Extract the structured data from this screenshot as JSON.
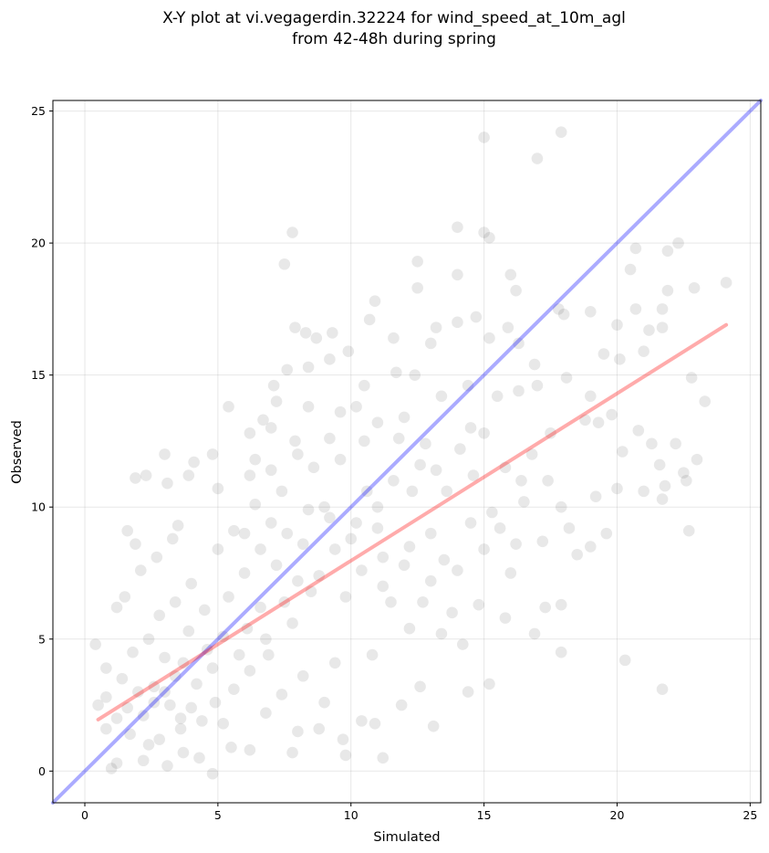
{
  "chart_data": {
    "type": "scatter",
    "title_lines": [
      "X-Y plot at vi.vegagerdin.32224 for wind_speed_at_10m_agl",
      "from 42-48h during spring"
    ],
    "xlabel": "Simulated",
    "ylabel": "Observed",
    "xlim": [
      -1.2,
      25.4
    ],
    "ylim": [
      -1.2,
      25.4
    ],
    "xticks": [
      0,
      5,
      10,
      15,
      20,
      25
    ],
    "yticks": [
      0,
      5,
      10,
      15,
      20,
      25
    ],
    "grid": true,
    "point_color": "#000000",
    "point_alpha": 0.09,
    "identity_line": {
      "from": [
        -1.2,
        -1.2
      ],
      "to": [
        25.4,
        25.4
      ],
      "color": "#0000ff"
    },
    "fit_line": {
      "from": [
        0.5,
        1.95
      ],
      "to": [
        24.1,
        16.9
      ],
      "color": "#ff0000"
    },
    "series": [
      {
        "values": [
          [
            17.9,
            24.2
          ],
          [
            15.0,
            24.0
          ],
          [
            17.0,
            23.2
          ],
          [
            12.5,
            19.3
          ],
          [
            7.5,
            19.2
          ],
          [
            7.8,
            20.4
          ],
          [
            14.0,
            20.6
          ],
          [
            15.0,
            20.4
          ],
          [
            15.2,
            20.2
          ],
          [
            20.7,
            19.8
          ],
          [
            22.3,
            20.0
          ],
          [
            20.5,
            19.0
          ],
          [
            21.9,
            19.7
          ],
          [
            14.0,
            18.8
          ],
          [
            12.5,
            18.3
          ],
          [
            10.9,
            17.8
          ],
          [
            16.0,
            18.8
          ],
          [
            16.2,
            18.2
          ],
          [
            17.8,
            17.5
          ],
          [
            19.0,
            17.4
          ],
          [
            20.7,
            17.5
          ],
          [
            21.7,
            17.5
          ],
          [
            22.9,
            18.3
          ],
          [
            24.1,
            18.5
          ],
          [
            21.9,
            18.2
          ],
          [
            18.0,
            17.3
          ],
          [
            21.2,
            16.7
          ],
          [
            21.7,
            16.8
          ],
          [
            20.0,
            16.9
          ],
          [
            15.9,
            16.8
          ],
          [
            16.3,
            16.2
          ],
          [
            14.7,
            17.2
          ],
          [
            15.2,
            16.4
          ],
          [
            11.6,
            16.4
          ],
          [
            10.7,
            17.1
          ],
          [
            8.3,
            16.6
          ],
          [
            8.7,
            16.4
          ],
          [
            9.3,
            16.6
          ],
          [
            13.2,
            16.8
          ],
          [
            14.0,
            17.0
          ],
          [
            9.9,
            15.9
          ],
          [
            7.9,
            16.8
          ],
          [
            16.9,
            15.4
          ],
          [
            18.1,
            14.9
          ],
          [
            19.5,
            15.8
          ],
          [
            20.1,
            15.6
          ],
          [
            21.0,
            15.9
          ],
          [
            19.0,
            14.2
          ],
          [
            19.3,
            13.2
          ],
          [
            20.8,
            12.9
          ],
          [
            21.3,
            12.4
          ],
          [
            22.2,
            12.4
          ],
          [
            23.3,
            14.0
          ],
          [
            22.8,
            14.9
          ],
          [
            21.6,
            11.6
          ],
          [
            22.5,
            11.3
          ],
          [
            23.0,
            11.8
          ],
          [
            22.6,
            11.0
          ],
          [
            21.8,
            10.8
          ],
          [
            21.0,
            10.6
          ],
          [
            20.0,
            10.7
          ],
          [
            22.7,
            9.1
          ],
          [
            21.7,
            10.3
          ],
          [
            19.0,
            8.5
          ],
          [
            18.5,
            8.2
          ],
          [
            17.3,
            6.2
          ],
          [
            17.9,
            6.3
          ],
          [
            16.9,
            5.2
          ],
          [
            17.9,
            4.5
          ],
          [
            15.2,
            3.3
          ],
          [
            14.4,
            3.0
          ],
          [
            20.3,
            4.2
          ],
          [
            21.7,
            3.1
          ],
          [
            13.1,
            1.7
          ],
          [
            11.2,
            0.5
          ],
          [
            9.8,
            0.6
          ],
          [
            7.8,
            0.7
          ],
          [
            4.8,
            -0.1
          ],
          [
            1.0,
            0.1
          ],
          [
            1.9,
            11.1
          ],
          [
            2.3,
            11.2
          ],
          [
            3.0,
            12.0
          ],
          [
            3.1,
            10.9
          ],
          [
            3.9,
            11.2
          ],
          [
            4.1,
            11.7
          ],
          [
            4.8,
            12.0
          ],
          [
            5.0,
            10.7
          ],
          [
            5.4,
            13.8
          ],
          [
            6.2,
            12.8
          ],
          [
            6.7,
            13.3
          ],
          [
            7.1,
            14.6
          ],
          [
            7.6,
            15.2
          ],
          [
            7.2,
            14.0
          ],
          [
            8.4,
            15.3
          ],
          [
            9.2,
            15.6
          ],
          [
            7.9,
            12.5
          ],
          [
            10.5,
            14.6
          ],
          [
            11.7,
            15.1
          ],
          [
            12.4,
            15.0
          ],
          [
            13.0,
            16.2
          ],
          [
            1.2,
            6.2
          ],
          [
            1.6,
            9.1
          ],
          [
            1.5,
            6.6
          ],
          [
            1.9,
            8.6
          ],
          [
            2.1,
            7.6
          ],
          [
            2.7,
            8.1
          ],
          [
            3.3,
            8.8
          ],
          [
            3.5,
            9.3
          ],
          [
            0.4,
            4.8
          ],
          [
            0.8,
            3.9
          ],
          [
            0.5,
            2.5
          ],
          [
            0.8,
            1.6
          ],
          [
            1.2,
            0.3
          ],
          [
            2.2,
            0.4
          ],
          [
            3.1,
            0.2
          ],
          [
            3.7,
            0.7
          ],
          [
            4.3,
            0.5
          ],
          [
            5.5,
            0.9
          ],
          [
            6.2,
            0.8
          ],
          [
            10.4,
            1.9
          ],
          [
            10.9,
            1.8
          ],
          [
            11.9,
            2.5
          ],
          [
            12.6,
            3.2
          ],
          [
            9.7,
            1.2
          ],
          [
            8.8,
            1.6
          ],
          [
            8.0,
            1.5
          ],
          [
            12.7,
            6.4
          ],
          [
            13.8,
            6.0
          ],
          [
            14.8,
            6.3
          ],
          [
            15.8,
            5.8
          ],
          [
            16.0,
            7.5
          ],
          [
            17.2,
            8.7
          ],
          [
            18.2,
            9.2
          ],
          [
            17.9,
            10.0
          ],
          [
            19.6,
            9.0
          ],
          [
            19.2,
            10.4
          ],
          [
            20.2,
            12.1
          ],
          [
            19.8,
            13.5
          ],
          [
            18.8,
            13.3
          ],
          [
            17.5,
            12.8
          ],
          [
            17.0,
            14.6
          ],
          [
            16.3,
            14.4
          ],
          [
            15.5,
            14.2
          ],
          [
            14.5,
            13.0
          ],
          [
            16.8,
            12.0
          ],
          [
            15.8,
            11.5
          ],
          [
            17.4,
            11.0
          ],
          [
            16.5,
            10.2
          ],
          [
            15.3,
            9.8
          ],
          [
            16.2,
            8.6
          ],
          [
            14.5,
            9.4
          ],
          [
            13.5,
            8.0
          ],
          [
            13.0,
            9.0
          ],
          [
            12.2,
            8.5
          ],
          [
            11.2,
            8.1
          ],
          [
            11.0,
            10.0
          ],
          [
            12.3,
            10.6
          ],
          [
            13.2,
            11.4
          ],
          [
            14.1,
            12.2
          ],
          [
            12.8,
            12.4
          ],
          [
            11.8,
            12.6
          ],
          [
            10.5,
            12.5
          ],
          [
            9.6,
            11.8
          ],
          [
            8.6,
            11.5
          ],
          [
            9.0,
            10.0
          ],
          [
            10.2,
            9.4
          ],
          [
            10.4,
            7.6
          ],
          [
            9.8,
            6.6
          ],
          [
            11.5,
            6.4
          ],
          [
            12.2,
            5.4
          ],
          [
            13.4,
            5.2
          ],
          [
            14.2,
            4.8
          ],
          [
            10.8,
            4.4
          ],
          [
            9.4,
            4.1
          ],
          [
            8.2,
            3.6
          ],
          [
            7.4,
            2.9
          ],
          [
            9.0,
            2.6
          ],
          [
            6.8,
            2.2
          ],
          [
            5.2,
            1.8
          ],
          [
            6.9,
            4.4
          ],
          [
            7.8,
            5.6
          ],
          [
            8.5,
            6.8
          ],
          [
            7.2,
            7.8
          ],
          [
            8.2,
            8.6
          ],
          [
            7.0,
            9.4
          ],
          [
            6.4,
            10.1
          ],
          [
            5.6,
            9.1
          ],
          [
            5.0,
            8.4
          ],
          [
            6.0,
            7.5
          ],
          [
            5.4,
            6.6
          ],
          [
            4.5,
            6.1
          ],
          [
            4.0,
            7.1
          ],
          [
            3.4,
            6.4
          ],
          [
            2.8,
            5.9
          ],
          [
            2.4,
            5.0
          ],
          [
            1.8,
            4.5
          ],
          [
            1.4,
            3.5
          ],
          [
            2.6,
            3.2
          ],
          [
            3.2,
            2.5
          ],
          [
            2.2,
            2.1
          ],
          [
            1.7,
            1.4
          ],
          [
            2.8,
            1.2
          ],
          [
            3.6,
            1.6
          ],
          [
            4.4,
            1.9
          ],
          [
            4.9,
            2.6
          ],
          [
            5.6,
            3.1
          ],
          [
            6.2,
            3.8
          ],
          [
            4.2,
            3.3
          ],
          [
            3.7,
            4.1
          ],
          [
            4.6,
            4.6
          ],
          [
            5.2,
            5.1
          ],
          [
            6.1,
            5.4
          ],
          [
            6.6,
            6.2
          ],
          [
            7.5,
            6.4
          ],
          [
            3.9,
            5.3
          ],
          [
            3.0,
            4.3
          ],
          [
            2.0,
            3.0
          ],
          [
            3.4,
            3.6
          ],
          [
            4.8,
            3.9
          ],
          [
            5.8,
            4.4
          ],
          [
            6.8,
            5.0
          ],
          [
            8.0,
            7.2
          ],
          [
            8.8,
            7.4
          ],
          [
            9.4,
            8.4
          ],
          [
            10.0,
            8.8
          ],
          [
            11.0,
            9.2
          ],
          [
            9.2,
            9.6
          ],
          [
            8.4,
            9.9
          ],
          [
            7.6,
            9.0
          ],
          [
            6.6,
            8.4
          ],
          [
            6.0,
            9.0
          ],
          [
            10.6,
            10.6
          ],
          [
            11.6,
            11.0
          ],
          [
            12.6,
            11.6
          ],
          [
            13.6,
            10.6
          ],
          [
            14.6,
            11.2
          ],
          [
            12.0,
            7.8
          ],
          [
            11.2,
            7.0
          ],
          [
            13.0,
            7.2
          ],
          [
            14.0,
            7.6
          ],
          [
            15.0,
            8.4
          ],
          [
            15.6,
            9.2
          ],
          [
            16.4,
            11.0
          ],
          [
            7.0,
            11.4
          ],
          [
            8.0,
            12.0
          ],
          [
            7.4,
            10.6
          ],
          [
            6.2,
            11.2
          ],
          [
            9.6,
            13.6
          ],
          [
            10.2,
            13.8
          ],
          [
            11.0,
            13.2
          ],
          [
            9.2,
            12.6
          ],
          [
            12.0,
            13.4
          ],
          [
            13.4,
            14.2
          ],
          [
            14.4,
            14.6
          ],
          [
            15.0,
            12.8
          ],
          [
            8.4,
            13.8
          ],
          [
            7.0,
            13.0
          ],
          [
            6.4,
            11.8
          ],
          [
            2.4,
            1.0
          ],
          [
            4.0,
            2.4
          ],
          [
            3.0,
            3.0
          ],
          [
            1.2,
            2.0
          ],
          [
            0.8,
            2.8
          ],
          [
            1.6,
            2.4
          ],
          [
            2.6,
            2.6
          ],
          [
            3.6,
            2.0
          ]
        ]
      }
    ]
  }
}
